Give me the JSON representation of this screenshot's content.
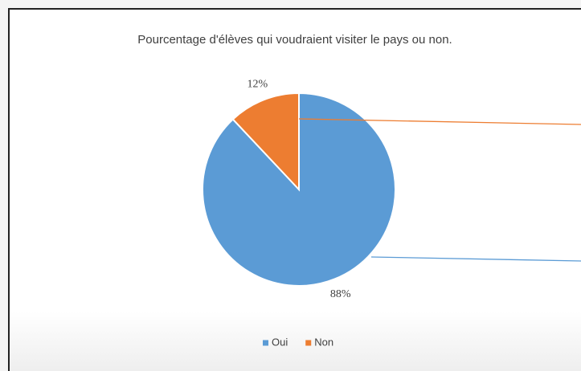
{
  "chart_data": {
    "type": "pie",
    "title": "Pourcentage d'élèves qui voudraient visiter le pays ou non.",
    "categories": [
      "Oui",
      "Non"
    ],
    "values": [
      88,
      12
    ],
    "value_labels": [
      "88%",
      "12%"
    ],
    "colors": [
      "#5b9bd5",
      "#ed7d31"
    ],
    "legend": "bottom"
  }
}
